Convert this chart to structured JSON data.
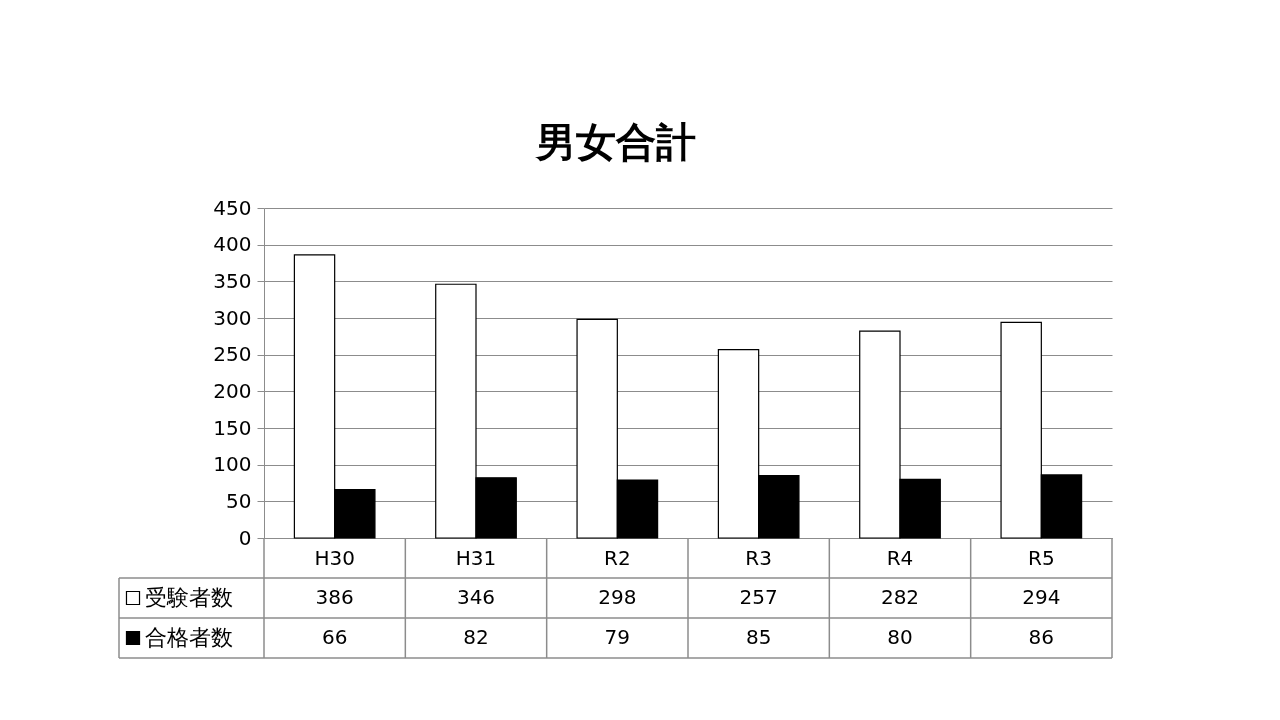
{
  "chart_data": {
    "type": "bar",
    "title": "男女合計",
    "categories": [
      "H30",
      "H31",
      "R2",
      "R3",
      "R4",
      "R5"
    ],
    "series": [
      {
        "name": "受験者数",
        "color": "#ffffff",
        "values": [
          386,
          346,
          298,
          257,
          282,
          294
        ]
      },
      {
        "name": "合格者数",
        "color": "#000000",
        "values": [
          66,
          82,
          79,
          85,
          80,
          86
        ]
      }
    ],
    "ylim": [
      0,
      450
    ],
    "yticks": [
      0,
      50,
      100,
      150,
      200,
      250,
      300,
      350,
      400,
      450
    ],
    "grid": "y",
    "legend": "bottom",
    "data_labels": true
  }
}
